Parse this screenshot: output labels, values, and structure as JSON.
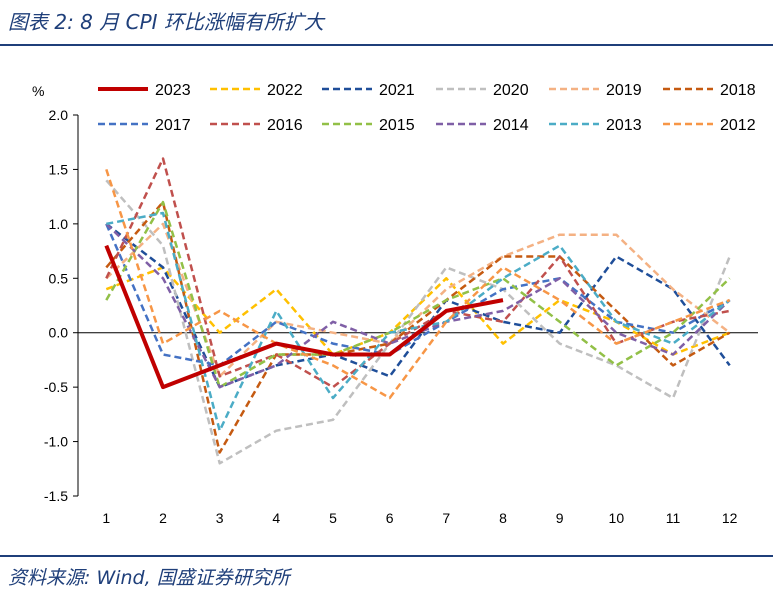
{
  "header": {
    "title": "图表 2:  8 月 CPI 环比涨幅有所扩大"
  },
  "footer": {
    "source": "资料来源:  Wind, 国盛证券研究所"
  },
  "chart_data": {
    "type": "line",
    "ylabel": "%",
    "ylim": [
      -1.5,
      2.0
    ],
    "yticks": [
      "2.0",
      "1.5",
      "1.0",
      "0.5",
      "0.0",
      "-0.5",
      "-1.0",
      "-1.5"
    ],
    "ytick_values": [
      2.0,
      1.5,
      1.0,
      0.5,
      0.0,
      -0.5,
      -1.0,
      -1.5
    ],
    "x": [
      "1",
      "2",
      "3",
      "4",
      "5",
      "6",
      "7",
      "8",
      "9",
      "10",
      "11",
      "12"
    ],
    "legend_position": "top",
    "series": [
      {
        "name": "2023",
        "color": "#c00000",
        "dash": "solid",
        "width": 4,
        "values": [
          0.8,
          -0.5,
          -0.3,
          -0.1,
          -0.2,
          -0.2,
          0.2,
          0.3,
          null,
          null,
          null,
          null
        ]
      },
      {
        "name": "2022",
        "color": "#ffc000",
        "dash": "dashed",
        "width": 2.5,
        "values": [
          0.4,
          0.6,
          0.0,
          0.4,
          -0.2,
          0.0,
          0.5,
          -0.1,
          0.3,
          0.1,
          -0.2,
          0.0
        ]
      },
      {
        "name": "2021",
        "color": "#1f4e99",
        "dash": "dashed",
        "width": 2.5,
        "values": [
          1.0,
          0.6,
          -0.5,
          -0.3,
          -0.2,
          -0.4,
          0.3,
          0.1,
          0.0,
          0.7,
          0.4,
          -0.3
        ]
      },
      {
        "name": "2020",
        "color": "#bfbfbf",
        "dash": "dashed",
        "width": 2.5,
        "values": [
          1.4,
          0.8,
          -1.2,
          -0.9,
          -0.8,
          -0.1,
          0.6,
          0.4,
          -0.1,
          -0.3,
          -0.6,
          0.7
        ]
      },
      {
        "name": "2019",
        "color": "#f4b183",
        "dash": "dashed",
        "width": 2.5,
        "values": [
          0.5,
          1.0,
          -0.4,
          0.1,
          0.0,
          -0.1,
          0.4,
          0.7,
          0.9,
          0.9,
          0.4,
          0.0
        ]
      },
      {
        "name": "2018",
        "color": "#c55a11",
        "dash": "dashed",
        "width": 2.5,
        "values": [
          0.6,
          1.2,
          -1.1,
          -0.2,
          -0.2,
          -0.1,
          0.3,
          0.7,
          0.7,
          0.2,
          -0.3,
          0.0
        ]
      },
      {
        "name": "2017",
        "color": "#4472c4",
        "dash": "dashed",
        "width": 2.5,
        "values": [
          1.0,
          -0.2,
          -0.3,
          0.1,
          -0.1,
          -0.2,
          0.1,
          0.4,
          0.5,
          0.1,
          0.0,
          0.3
        ]
      },
      {
        "name": "2016",
        "color": "#c0504d",
        "dash": "dashed",
        "width": 2.5,
        "values": [
          0.5,
          1.6,
          -0.4,
          -0.2,
          -0.5,
          -0.1,
          0.2,
          0.1,
          0.7,
          -0.1,
          0.1,
          0.2
        ]
      },
      {
        "name": "2015",
        "color": "#92c047",
        "dash": "dashed",
        "width": 2.5,
        "values": [
          0.3,
          1.2,
          -0.5,
          -0.2,
          -0.2,
          0.0,
          0.3,
          0.5,
          0.1,
          -0.3,
          0.0,
          0.5
        ]
      },
      {
        "name": "2014",
        "color": "#7f5fa6",
        "dash": "dashed",
        "width": 2.5,
        "values": [
          1.0,
          0.5,
          -0.5,
          -0.3,
          0.1,
          -0.1,
          0.1,
          0.2,
          0.5,
          0.0,
          -0.2,
          0.3
        ]
      },
      {
        "name": "2013",
        "color": "#4bacc6",
        "dash": "dashed",
        "width": 2.5,
        "values": [
          1.0,
          1.1,
          -0.9,
          0.2,
          -0.6,
          0.0,
          0.1,
          0.5,
          0.8,
          0.1,
          -0.1,
          0.3
        ]
      },
      {
        "name": "2012",
        "color": "#f79646",
        "dash": "dashed",
        "width": 2.5,
        "values": [
          1.5,
          -0.1,
          0.2,
          -0.1,
          -0.3,
          -0.6,
          0.1,
          0.6,
          0.3,
          -0.1,
          0.1,
          0.3
        ]
      }
    ]
  }
}
